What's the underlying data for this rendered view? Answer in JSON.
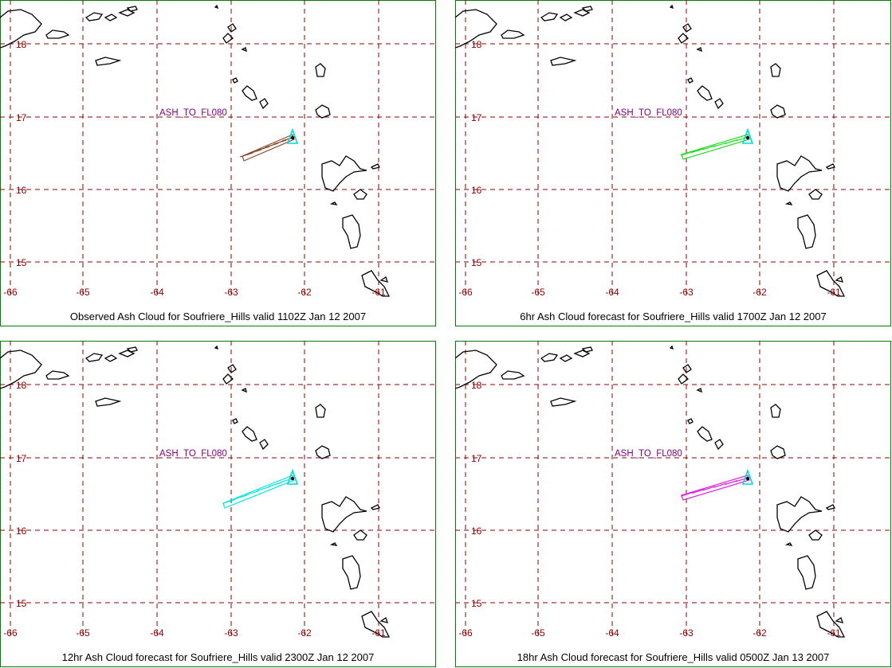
{
  "label_text": "ASH_TO_FL080",
  "lat_labels": [
    "18",
    "17",
    "16",
    "15"
  ],
  "lon_labels": [
    "-66",
    "-65",
    "-64",
    "-63",
    "-62",
    "-61"
  ],
  "colors": {
    "grid": "#8b0000",
    "frame": "#008000",
    "coast": "#000000",
    "label": "#800080",
    "volcano": "#00d8d8"
  },
  "panels": [
    {
      "caption": "Observed Ash Cloud for Soufriere_Hills valid 1102Z Jan 12 2007",
      "cloud_color": "#8b4a2b",
      "cloud_extent": "short"
    },
    {
      "caption": "6hr Ash Cloud forecast for Soufriere_Hills valid 1700Z Jan 12 2007",
      "cloud_color": "#22dd22",
      "cloud_extent": "long"
    },
    {
      "caption": "12hr Ash Cloud forecast for Soufriere_Hills valid 2300Z Jan 12 2007",
      "cloud_color": "#00e5e5",
      "cloud_extent": "longest"
    },
    {
      "caption": "18hr Ash Cloud forecast for Soufriere_Hills valid 0500Z Jan 13 2007",
      "cloud_color": "#e020e0",
      "cloud_extent": "long"
    }
  ]
}
